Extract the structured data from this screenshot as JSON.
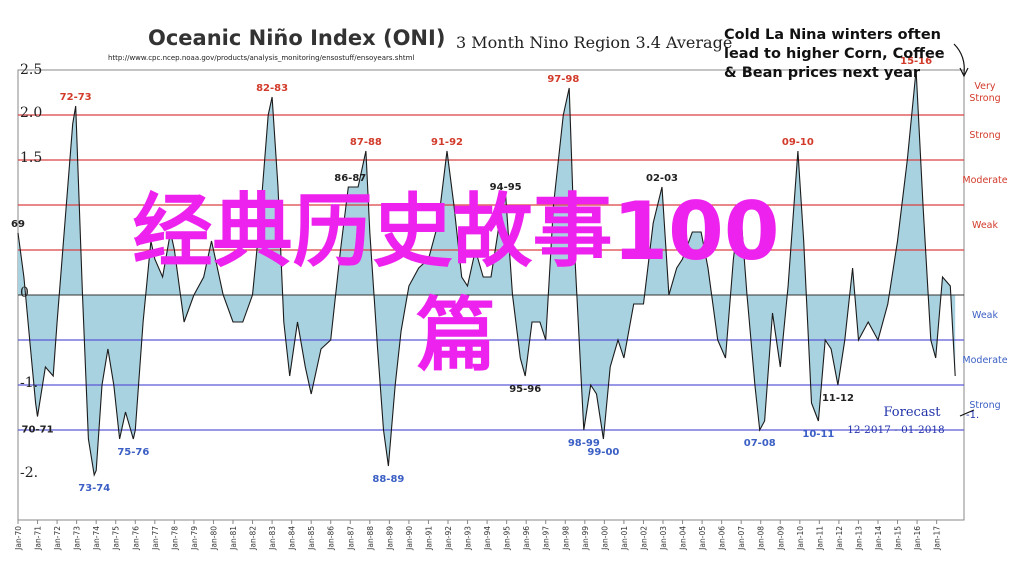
{
  "header": {
    "title": "Oceanic Niño Index (ONI)",
    "subtitle": "3 Month Nino Region 3.4 Average",
    "source_url": "http://www.cpc.ncep.noaa.gov/products/analysis_monitoring/ensostuff/ensoyears.shtml"
  },
  "annotation": {
    "note_lines": [
      "Cold La Nina winters often",
      "lead to higher Corn, Coffee",
      "& Bean prices next year"
    ],
    "forecast_label": "Forecast",
    "forecast_range": "12-2017 - 01-2018"
  },
  "overlay": {
    "line1": "经典历史故事100",
    "line2": "篇"
  },
  "colors": {
    "fill": "#a9d2e0",
    "line": "#1b1b1b",
    "el_nino_threshold": "#d94040",
    "la_nina_threshold": "#5a5ad8",
    "el_nino_label": "#d23a2a",
    "la_nina_label": "#3b5fc4",
    "overlay_text": "#ee22ee"
  },
  "chart_data": {
    "type": "area",
    "title": "Oceanic Niño Index (ONI)",
    "subtitle": "3 Month Nino Region 3.4 Average",
    "ylim": [
      -2.5,
      2.5
    ],
    "y_ticks": [
      "2.5",
      "2.0",
      "1.5",
      "",
      "0",
      "",
      "-1.",
      "",
      "-2."
    ],
    "x_ticks": [
      "Jan-70",
      "Jan-71",
      "Jan-72",
      "Jan-73",
      "Jan-74",
      "Jan-75",
      "Jan-76",
      "Jan-77",
      "Jan-78",
      "Jan-79",
      "Jan-80",
      "Jan-81",
      "Jan-82",
      "Jan-83",
      "Jan-84",
      "Jan-85",
      "Jan-86",
      "Jan-87",
      "Jan-88",
      "Jan-89",
      "Jan-90",
      "Jan-91",
      "Jan-92",
      "Jan-93",
      "Jan-94",
      "Jan-95",
      "Jan-96",
      "Jan-97",
      "Jan-98",
      "Jan-99",
      "Jan-00",
      "Jan-01",
      "Jan-02",
      "Jan-03",
      "Jan-04",
      "Jan-05",
      "Jan-06",
      "Jan-07",
      "Jan-08",
      "Jan-09",
      "Jan-10",
      "Jan-11",
      "Jan-12",
      "Jan-13",
      "Jan-14",
      "Jan-15",
      "Jan-16",
      "Jan-17"
    ],
    "thresholds": [
      {
        "label": "Very Strong",
        "value": 2.0,
        "kind": "el_nino"
      },
      {
        "label": "Strong",
        "value": 1.5,
        "kind": "el_nino"
      },
      {
        "label": "Moderate",
        "value": 1.0,
        "kind": "el_nino"
      },
      {
        "label": "Weak",
        "value": 0.5,
        "kind": "el_nino"
      },
      {
        "label": "Weak",
        "value": -0.5,
        "kind": "la_nina"
      },
      {
        "label": "Moderate",
        "value": -1.0,
        "kind": "la_nina"
      },
      {
        "label": "Strong",
        "value": -1.5,
        "kind": "la_nina"
      }
    ],
    "series": [
      {
        "x": [
          1970.0,
          1970.3,
          1970.6,
          1970.9,
          1971.0,
          1971.4,
          1971.8,
          1972.0,
          1972.4,
          1972.8,
          1972.95,
          1973.3,
          1973.6,
          1973.9,
          1974.0,
          1974.3,
          1974.6,
          1974.9,
          1975.2,
          1975.5,
          1975.9,
          1976.0,
          1976.4,
          1976.8,
          1977.0,
          1977.4,
          1977.8,
          1978.0,
          1978.5,
          1979.0,
          1979.5,
          1979.9,
          1980.0,
          1980.5,
          1981.0,
          1981.5,
          1982.0,
          1982.4,
          1982.8,
          1983.0,
          1983.3,
          1983.6,
          1983.9,
          1984.3,
          1984.7,
          1985.0,
          1985.5,
          1986.0,
          1986.5,
          1986.9,
          1987.4,
          1987.8,
          1988.0,
          1988.4,
          1988.7,
          1988.95,
          1989.3,
          1989.6,
          1990.0,
          1990.5,
          1991.0,
          1991.5,
          1991.95,
          1992.3,
          1992.7,
          1993.0,
          1993.4,
          1993.8,
          1994.2,
          1994.7,
          1994.95,
          1995.3,
          1995.7,
          1995.95,
          1996.3,
          1996.7,
          1997.0,
          1997.4,
          1997.9,
          1998.2,
          1998.5,
          1998.95,
          1999.3,
          1999.6,
          1999.95,
          2000.3,
          2000.7,
          2001.0,
          2001.5,
          2002.0,
          2002.5,
          2002.95,
          2003.3,
          2003.7,
          2004.0,
          2004.5,
          2004.95,
          2005.3,
          2005.8,
          2006.2,
          2006.6,
          2006.95,
          2007.3,
          2007.7,
          2007.95,
          2008.2,
          2008.6,
          2009.0,
          2009.4,
          2009.9,
          2010.2,
          2010.6,
          2010.95,
          2011.3,
          2011.6,
          2011.95,
          2012.3,
          2012.7,
          2013.0,
          2013.5,
          2014.0,
          2014.5,
          2015.0,
          2015.5,
          2015.95,
          2016.3,
          2016.7,
          2016.95,
          2017.3,
          2017.7,
          2017.95
        ],
        "y": [
          0.69,
          0.2,
          -0.5,
          -1.2,
          -1.35,
          -0.8,
          -0.9,
          -0.3,
          0.8,
          1.9,
          2.1,
          0.0,
          -1.6,
          -2.0,
          -1.95,
          -1.0,
          -0.6,
          -1.0,
          -1.6,
          -1.3,
          -1.6,
          -1.5,
          -0.3,
          0.6,
          0.4,
          0.2,
          0.7,
          0.5,
          -0.3,
          0.0,
          0.2,
          0.6,
          0.5,
          0.0,
          -0.3,
          -0.3,
          0.0,
          0.9,
          2.0,
          2.2,
          1.2,
          -0.3,
          -0.9,
          -0.3,
          -0.8,
          -1.1,
          -0.6,
          -0.5,
          0.5,
          1.2,
          1.2,
          1.6,
          0.7,
          -0.6,
          -1.5,
          -1.9,
          -1.0,
          -0.4,
          0.1,
          0.3,
          0.4,
          0.8,
          1.6,
          1.0,
          0.2,
          0.1,
          0.5,
          0.2,
          0.2,
          0.9,
          1.1,
          0.0,
          -0.7,
          -0.9,
          -0.3,
          -0.3,
          -0.5,
          1.0,
          2.0,
          2.3,
          0.4,
          -1.5,
          -1.0,
          -1.1,
          -1.6,
          -0.8,
          -0.5,
          -0.7,
          -0.1,
          -0.1,
          0.8,
          1.2,
          0.0,
          0.3,
          0.4,
          0.7,
          0.7,
          0.3,
          -0.5,
          -0.7,
          0.4,
          1.0,
          0.0,
          -1.0,
          -1.5,
          -1.4,
          -0.2,
          -0.8,
          0.1,
          1.6,
          0.6,
          -1.2,
          -1.4,
          -0.5,
          -0.6,
          -1.0,
          -0.5,
          0.3,
          -0.5,
          -0.3,
          -0.5,
          -0.1,
          0.6,
          1.5,
          2.5,
          1.0,
          -0.5,
          -0.7,
          0.2,
          0.1,
          -0.9
        ]
      }
    ],
    "event_labels": [
      {
        "text": "69",
        "x": 1970.0,
        "y": 0.69,
        "kind": "el_nino"
      },
      {
        "text": "72-73",
        "x": 1972.95,
        "y": 2.1,
        "kind": "el_nino"
      },
      {
        "text": "82-83",
        "x": 1983.0,
        "y": 2.2,
        "kind": "el_nino"
      },
      {
        "text": "86-87",
        "x": 1987.0,
        "y": 1.2,
        "kind": "el_nino"
      },
      {
        "text": "87-88",
        "x": 1987.8,
        "y": 1.6,
        "kind": "el_nino"
      },
      {
        "text": "91-92",
        "x": 1991.95,
        "y": 1.6,
        "kind": "el_nino"
      },
      {
        "text": "94-95",
        "x": 1994.95,
        "y": 1.1,
        "kind": "el_nino"
      },
      {
        "text": "97-98",
        "x": 1997.9,
        "y": 2.3,
        "kind": "el_nino"
      },
      {
        "text": "02-03",
        "x": 2002.95,
        "y": 1.2,
        "kind": "el_nino"
      },
      {
        "text": "09-10",
        "x": 2009.9,
        "y": 1.6,
        "kind": "el_nino"
      },
      {
        "text": "15-16",
        "x": 2015.95,
        "y": 2.5,
        "kind": "el_nino"
      },
      {
        "text": "70-71",
        "x": 1971.0,
        "y": -1.35,
        "kind": "la_nina"
      },
      {
        "text": "73-74",
        "x": 1973.9,
        "y": -2.0,
        "kind": "la_nina"
      },
      {
        "text": "75-76",
        "x": 1975.9,
        "y": -1.6,
        "kind": "la_nina"
      },
      {
        "text": "88-89",
        "x": 1988.95,
        "y": -1.9,
        "kind": "la_nina"
      },
      {
        "text": "95-96",
        "x": 1995.95,
        "y": -0.9,
        "kind": "la_nina"
      },
      {
        "text": "98-99",
        "x": 1998.95,
        "y": -1.5,
        "kind": "la_nina"
      },
      {
        "text": "99-00",
        "x": 1999.95,
        "y": -1.6,
        "kind": "la_nina"
      },
      {
        "text": "07-08",
        "x": 2007.95,
        "y": -1.5,
        "kind": "la_nina"
      },
      {
        "text": "10-11",
        "x": 2010.95,
        "y": -1.4,
        "kind": "la_nina"
      },
      {
        "text": "11-12",
        "x": 2011.95,
        "y": -1.0,
        "kind": "la_nina"
      }
    ],
    "forecast": {
      "label": "Forecast",
      "range": "12-2017 - 01-2018",
      "value_text": "-1."
    },
    "grid": false,
    "legend": "none"
  }
}
